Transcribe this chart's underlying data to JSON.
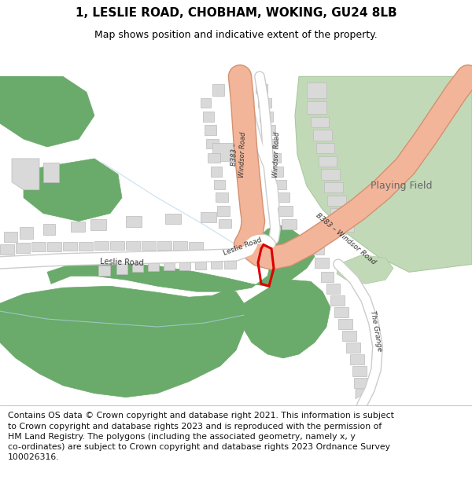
{
  "title": "1, LESLIE ROAD, CHOBHAM, WOKING, GU24 8LB",
  "subtitle": "Map shows position and indicative extent of the property.",
  "footer_line1": "Contains OS data © Crown copyright and database right 2021. This information is subject",
  "footer_line2": "to Crown copyright and database rights 2023 and is reproduced with the permission of",
  "footer_line3": "HM Land Registry. The polygons (including the associated geometry, namely x, y",
  "footer_line4": "co-ordinates) are subject to Crown copyright and database rights 2023 Ordnance Survey",
  "footer_line5": "100026316.",
  "bg_color": "#f2efe8",
  "road_major_color": "#f2b59a",
  "road_major_edge": "#d4916e",
  "road_minor_color": "#ffffff",
  "road_minor_edge": "#cccccc",
  "green_dark": "#6aaa6a",
  "green_light": "#c2d9b8",
  "building_color": "#d9d9d9",
  "building_edge": "#bbbbbb",
  "plot_color": "#dd0000",
  "water_color": "#b8dcea",
  "title_fontsize": 11,
  "subtitle_fontsize": 9,
  "footer_fontsize": 7.8
}
